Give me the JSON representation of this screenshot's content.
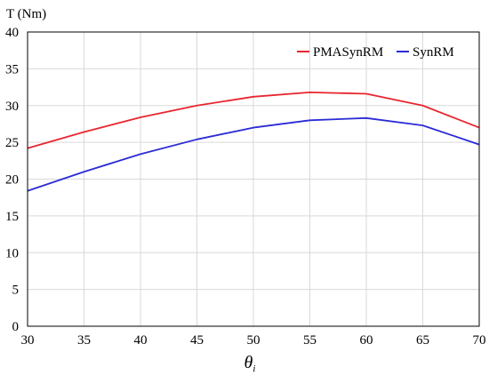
{
  "chart_data": {
    "type": "line",
    "ylabel": "T (Nm)",
    "xlabel": "θ",
    "xlabel_subscript": "i",
    "x": [
      30,
      35,
      40,
      45,
      50,
      55,
      60,
      65,
      70
    ],
    "xlim": [
      30,
      70
    ],
    "ylim": [
      0,
      40
    ],
    "x_ticks": [
      30,
      35,
      40,
      45,
      50,
      55,
      60,
      65,
      70
    ],
    "y_ticks": [
      0,
      5,
      10,
      15,
      20,
      25,
      30,
      35,
      40
    ],
    "grid": true,
    "legend_position": "top-right",
    "series": [
      {
        "name": "PMASynRM",
        "color": "#e8262f",
        "values": [
          24.2,
          26.4,
          28.4,
          30.0,
          31.2,
          31.8,
          31.6,
          30.0,
          27.0
        ]
      },
      {
        "name": "SynRM",
        "color": "#2b2bd6",
        "values": [
          18.4,
          21.0,
          23.4,
          25.4,
          27.0,
          28.0,
          28.3,
          27.3,
          24.7
        ]
      }
    ]
  }
}
